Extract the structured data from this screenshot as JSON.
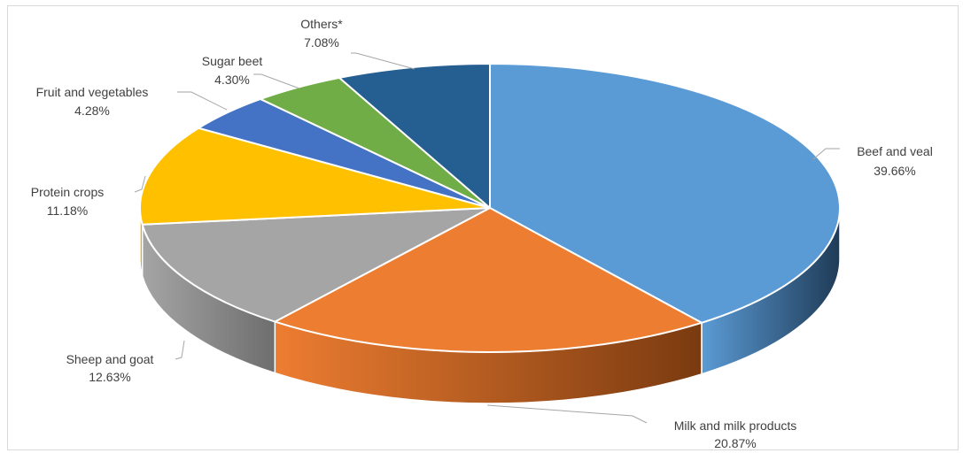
{
  "chart_data": {
    "type": "pie",
    "title": "",
    "slices": [
      {
        "name": "Beef and veal",
        "value": 39.66,
        "label": "39.66%",
        "color": "#5b9bd5",
        "side": "#1f3b57"
      },
      {
        "name": "Milk and milk products",
        "value": 20.87,
        "label": "20.87%",
        "color": "#ed7d31",
        "side": "#7a3a10"
      },
      {
        "name": "Sheep and goat",
        "value": 12.63,
        "label": "12.63%",
        "color": "#a5a5a5",
        "side": "#6e6e6e"
      },
      {
        "name": "Protein crops",
        "value": 11.18,
        "label": "11.18%",
        "color": "#ffc000",
        "side": "#b38600"
      },
      {
        "name": "Fruit and vegetables",
        "value": 4.28,
        "label": "4.28%",
        "color": "#4472c4",
        "side": "#27426f"
      },
      {
        "name": "Sugar beet",
        "value": 4.3,
        "label": "4.30%",
        "color": "#70ad47",
        "side": "#3f6428"
      },
      {
        "name": "Others*",
        "value": 7.08,
        "label": "7.08%",
        "color": "#255e91",
        "side": "#163a59"
      }
    ],
    "legend": "none",
    "style": "3d-pie"
  }
}
